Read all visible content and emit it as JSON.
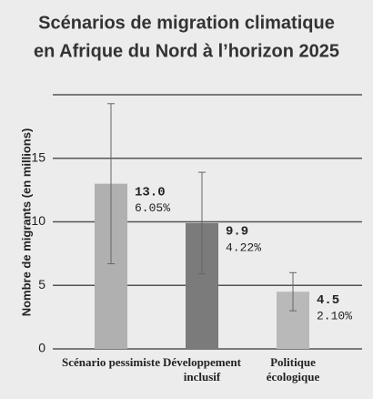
{
  "chart_data": {
    "type": "bar",
    "title": [
      "Scénarios de migration climatique",
      "en Afrique du Nord à l’horizon 2025"
    ],
    "y_label": "Nombre de migrants (en millions)",
    "categories": [
      "Scénario pessimiste",
      "Développement inclusif",
      "Politique écologique"
    ],
    "values": [
      13.0,
      9.9,
      4.5
    ],
    "value_labels": [
      "13.0",
      "9.9",
      "4.5"
    ],
    "errors": [
      6.3,
      4.0,
      1.5
    ],
    "shares": [
      6.05,
      4.22,
      2.1
    ],
    "share_labels": [
      "6.05%",
      "4.22%",
      "2.10%"
    ],
    "colors": [
      "#b0b0b0",
      "#7b7b7b",
      "#b9b9b9"
    ],
    "ylim": [
      0,
      20
    ],
    "yticks": [
      0,
      5,
      10,
      15
    ],
    "grid": true
  }
}
